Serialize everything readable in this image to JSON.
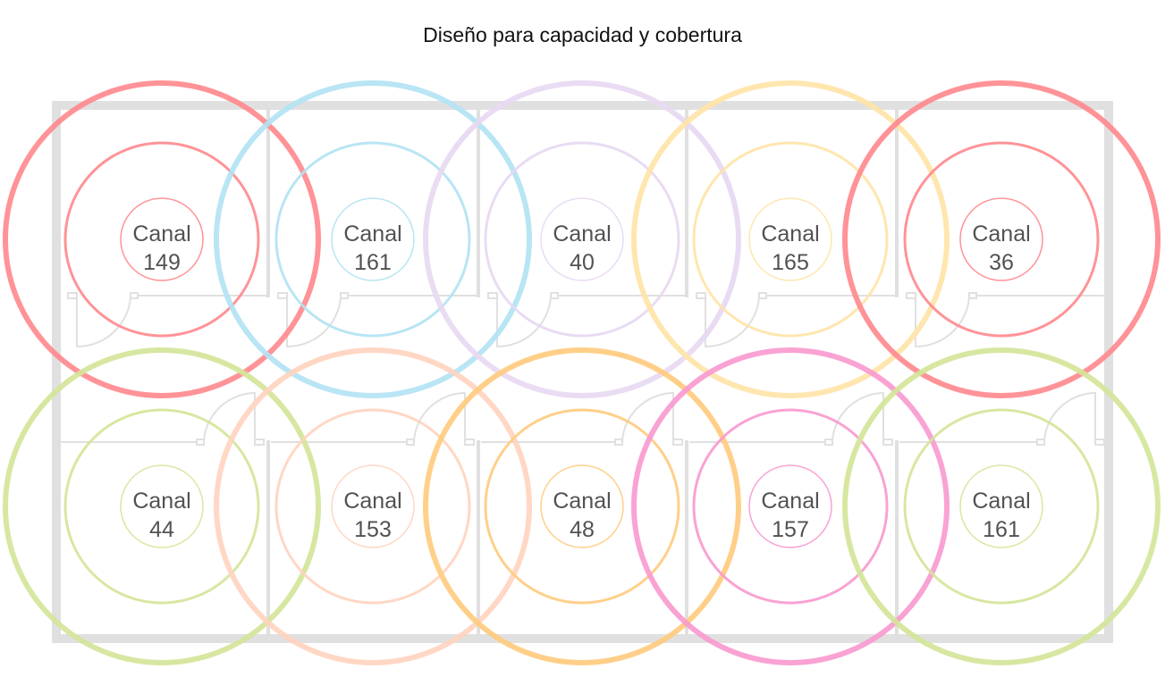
{
  "title": "Diseño para capacidad y cobertura",
  "access_points": [
    {
      "label": "Canal",
      "channel": "149",
      "color": "#ff8a8f"
    },
    {
      "label": "Canal",
      "channel": "161",
      "color": "#b3e3f4"
    },
    {
      "label": "Canal",
      "channel": "40",
      "color": "#e8d9f2"
    },
    {
      "label": "Canal",
      "channel": "165",
      "color": "#ffe4a8"
    },
    {
      "label": "Canal",
      "channel": "36",
      "color": "#ff8a8f"
    },
    {
      "label": "Canal",
      "channel": "44",
      "color": "#d4e69a"
    },
    {
      "label": "Canal",
      "channel": "153",
      "color": "#ffd4c0"
    },
    {
      "label": "Canal",
      "channel": "48",
      "color": "#ffcc80"
    },
    {
      "label": "Canal",
      "channel": "157",
      "color": "#f99bd0"
    },
    {
      "label": "Canal",
      "channel": "161",
      "color": "#d4e69a"
    }
  ],
  "wall_color": "#e0e0e0"
}
